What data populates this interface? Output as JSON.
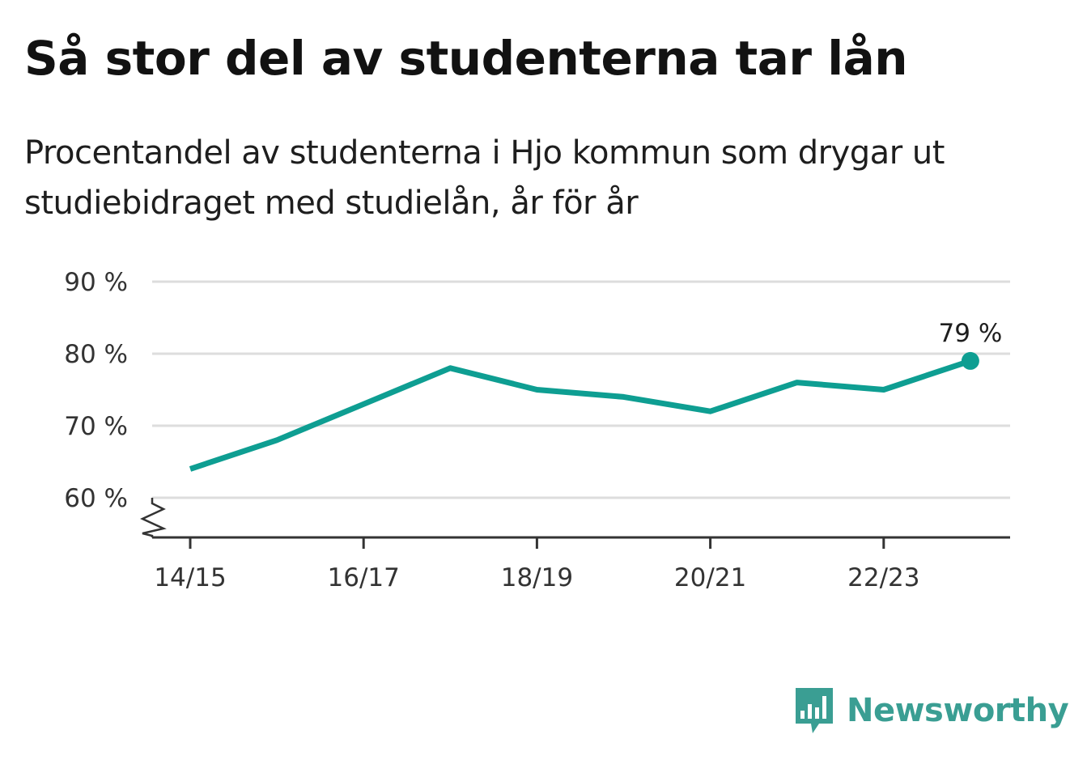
{
  "header": {
    "title": "Så stor del av studenterna tar lån",
    "subtitle": "Procentandel av studenterna i Hjo kommun som drygar ut studiebidraget med studielån, år för år"
  },
  "chart_data": {
    "type": "line",
    "x": [
      "14/15",
      "15/16",
      "16/17",
      "17/18",
      "18/19",
      "19/20",
      "20/21",
      "21/22",
      "22/23",
      "23/24"
    ],
    "x_tick_labels": [
      "14/15",
      "16/17",
      "18/19",
      "20/21",
      "22/23"
    ],
    "series": [
      {
        "values": [
          64,
          68,
          73,
          78,
          75,
          74,
          72,
          76,
          75,
          79
        ]
      }
    ],
    "y_ticks": [
      60,
      70,
      80,
      90
    ],
    "y_tick_labels": [
      "60 %",
      "70 %",
      "80 %",
      "90 %"
    ],
    "ylim": [
      55,
      90
    ],
    "y_axis_break": true,
    "grid": true,
    "end_label": "79 %",
    "colors": {
      "line": "#0e9e92",
      "grid": "#dddddd",
      "axis": "#333333"
    }
  },
  "brand": {
    "name": "Newsworthy",
    "color": "#3a9e93",
    "icon": "bar-chart-speech-bubble-icon"
  }
}
